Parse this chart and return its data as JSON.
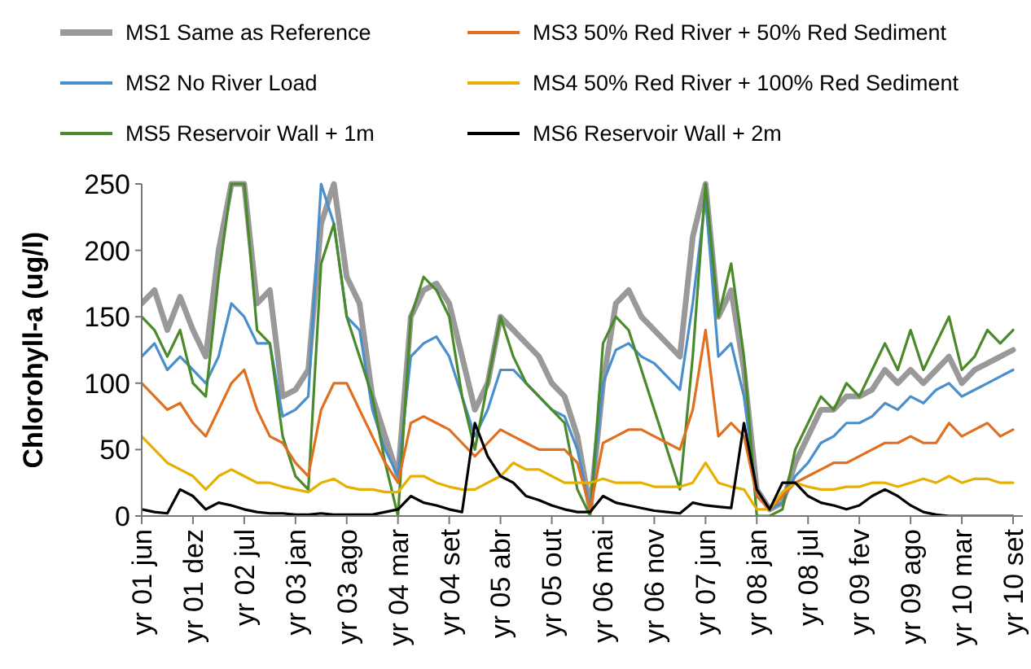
{
  "chart_data": {
    "type": "line",
    "ylabel": "Chlorohyll-a (ug/l)",
    "legend": "top",
    "grid": false,
    "marker": "none",
    "line_style": "solid",
    "categories": [
      "yr 01 jun",
      null,
      null,
      null,
      "yr 01 dez",
      null,
      null,
      null,
      "yr 02 jul",
      null,
      null,
      null,
      "yr 03 jan",
      null,
      null,
      null,
      "yr 03 ago",
      null,
      null,
      null,
      "yr 04 mar",
      null,
      null,
      null,
      "yr 04 set",
      null,
      null,
      null,
      "yr 05 abr",
      null,
      null,
      null,
      "yr 05 out",
      null,
      null,
      null,
      "yr 06 mai",
      null,
      null,
      null,
      "yr 06 nov",
      null,
      null,
      null,
      "yr 07 jun",
      null,
      null,
      null,
      "yr 08 jan",
      null,
      null,
      null,
      "yr 08 jul",
      null,
      null,
      null,
      "yr 09 fev",
      null,
      null,
      null,
      "yr 09 ago",
      null,
      null,
      null,
      "yr 10 mar",
      null,
      null,
      null,
      "yr 10 set"
    ],
    "ylim": [
      0,
      250
    ],
    "yticks": [
      0,
      50,
      100,
      150,
      200,
      250
    ],
    "series": [
      {
        "name": "MS1 Same as Reference",
        "color": "#999999",
        "values": [
          160,
          170,
          140,
          165,
          140,
          120,
          200,
          250,
          250,
          160,
          170,
          90,
          95,
          110,
          220,
          250,
          180,
          160,
          90,
          60,
          30,
          150,
          170,
          175,
          160,
          120,
          80,
          100,
          150,
          140,
          130,
          120,
          100,
          90,
          60,
          5,
          100,
          160,
          170,
          150,
          140,
          130,
          120,
          210,
          250,
          150,
          170,
          110,
          20,
          5,
          10,
          40,
          60,
          80,
          80,
          90,
          90,
          95,
          110,
          100,
          110,
          100,
          110,
          120,
          100,
          110,
          115,
          120,
          125
        ]
      },
      {
        "name": "MS2 No River Load",
        "color": "#4a8fcc",
        "values": [
          120,
          130,
          110,
          120,
          110,
          100,
          120,
          160,
          150,
          130,
          130,
          75,
          80,
          90,
          250,
          220,
          150,
          140,
          80,
          50,
          30,
          120,
          130,
          135,
          120,
          90,
          60,
          80,
          110,
          110,
          100,
          90,
          80,
          75,
          50,
          5,
          100,
          125,
          130,
          120,
          115,
          105,
          95,
          160,
          240,
          120,
          130,
          90,
          15,
          5,
          10,
          30,
          40,
          55,
          60,
          70,
          70,
          75,
          85,
          80,
          90,
          85,
          95,
          100,
          90,
          95,
          100,
          105,
          110
        ]
      },
      {
        "name": "MS5 Reservoir Wall + 1m",
        "color": "#4a8a2a",
        "values": [
          150,
          140,
          120,
          140,
          100,
          90,
          180,
          250,
          250,
          140,
          130,
          60,
          30,
          20,
          190,
          220,
          150,
          120,
          90,
          40,
          0,
          150,
          180,
          170,
          150,
          90,
          50,
          100,
          150,
          120,
          100,
          90,
          80,
          70,
          20,
          0,
          130,
          150,
          140,
          110,
          80,
          50,
          20,
          120,
          250,
          150,
          190,
          120,
          0,
          0,
          5,
          50,
          70,
          90,
          80,
          100,
          90,
          110,
          130,
          110,
          140,
          110,
          130,
          150,
          110,
          120,
          140,
          130,
          140
        ]
      },
      {
        "name": "MS3 50% Red River + 50% Red Sediment",
        "color": "#e07020",
        "values": [
          100,
          90,
          80,
          85,
          70,
          60,
          80,
          100,
          110,
          80,
          60,
          55,
          40,
          30,
          80,
          100,
          100,
          80,
          60,
          40,
          25,
          70,
          75,
          70,
          65,
          55,
          45,
          55,
          65,
          60,
          55,
          50,
          50,
          50,
          40,
          5,
          55,
          60,
          65,
          65,
          60,
          55,
          50,
          80,
          140,
          60,
          70,
          60,
          15,
          5,
          15,
          25,
          30,
          35,
          40,
          40,
          45,
          50,
          55,
          55,
          60,
          55,
          55,
          70,
          60,
          65,
          70,
          60,
          65
        ]
      },
      {
        "name": "MS4 50% Red River + 100% Red Sediment",
        "color": "#e6b000",
        "values": [
          60,
          50,
          40,
          35,
          30,
          20,
          30,
          35,
          30,
          25,
          25,
          22,
          20,
          18,
          25,
          28,
          22,
          20,
          20,
          18,
          18,
          30,
          30,
          25,
          22,
          20,
          20,
          25,
          30,
          40,
          35,
          35,
          30,
          25,
          25,
          25,
          28,
          25,
          25,
          25,
          22,
          22,
          22,
          25,
          40,
          25,
          22,
          20,
          5,
          5,
          18,
          25,
          22,
          20,
          20,
          22,
          22,
          25,
          25,
          22,
          25,
          28,
          25,
          30,
          25,
          28,
          28,
          25,
          25
        ]
      },
      {
        "name": "MS6 Reservoir Wall + 2m",
        "color": "#000000",
        "values": [
          5,
          3,
          2,
          20,
          15,
          5,
          10,
          8,
          5,
          3,
          2,
          2,
          1,
          1,
          2,
          1,
          1,
          1,
          1,
          3,
          5,
          15,
          10,
          8,
          5,
          3,
          70,
          45,
          30,
          25,
          15,
          12,
          8,
          5,
          3,
          3,
          15,
          10,
          8,
          6,
          4,
          3,
          2,
          10,
          8,
          7,
          6,
          70,
          20,
          5,
          25,
          25,
          15,
          10,
          8,
          5,
          8,
          15,
          20,
          15,
          8,
          3,
          1,
          0,
          0,
          0,
          0,
          0,
          0
        ]
      }
    ]
  }
}
